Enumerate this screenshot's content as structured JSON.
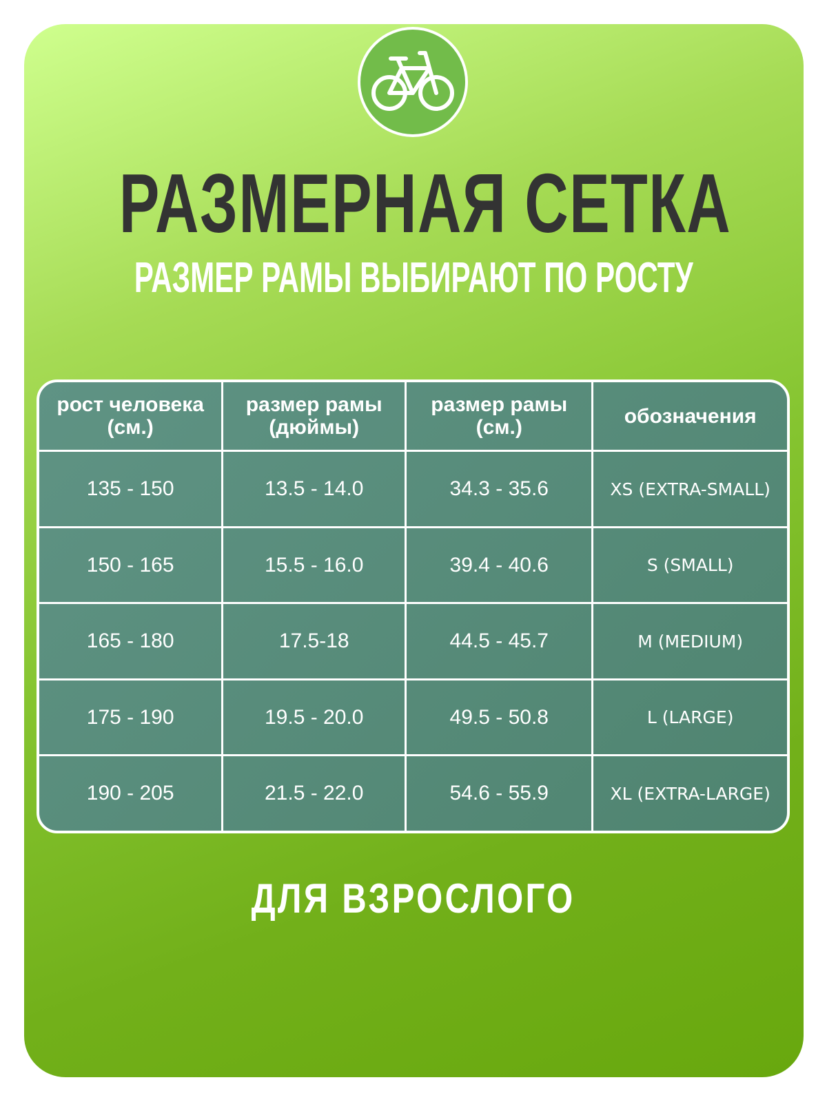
{
  "icon": "bicycle-icon",
  "title": "РАЗМЕРНАЯ СЕТКА",
  "subtitle": "РАЗМЕР РАМЫ ВЫБИРАЮТ ПО РОСТУ",
  "colors": {
    "background_top": "#cfff8e",
    "background_bottom": "#68a80e",
    "table": "#5a8c7c",
    "title": "#333333",
    "logo": "#72bc4a"
  },
  "table": {
    "headers": [
      {
        "line1": "рост человека",
        "line2": "(см.)"
      },
      {
        "line1": "размер рамы",
        "line2": "(дюймы)"
      },
      {
        "line1": "размер рамы",
        "line2": "(см.)"
      },
      {
        "line1": "обозначения",
        "line2": ""
      }
    ],
    "rows": [
      [
        "135 - 150",
        "13.5 - 14.0",
        "34.3 - 35.6",
        "XS (EXTRA-SMALL)"
      ],
      [
        "150 - 165",
        "15.5 - 16.0",
        "39.4 - 40.6",
        "S (SMALL)"
      ],
      [
        "165 - 180",
        "17.5-18",
        "44.5 - 45.7",
        "M (MEDIUM)"
      ],
      [
        "175 - 190",
        "19.5 - 20.0",
        "49.5 - 50.8",
        "L (LARGE)"
      ],
      [
        "190 - 205",
        "21.5 - 22.0",
        "54.6 - 55.9",
        "XL (EXTRA-LARGE)"
      ]
    ]
  },
  "footer": "ДЛЯ ВЗРОСЛОГО"
}
